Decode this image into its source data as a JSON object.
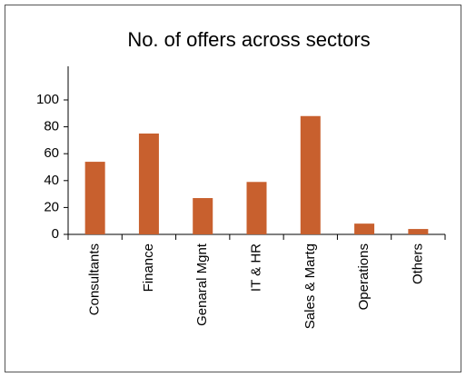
{
  "chart_data": {
    "type": "bar",
    "title": "No. of offers across sectors",
    "categories": [
      "Consultants",
      "Finance",
      "Genaral Mgnt",
      "IT & HR",
      "Sales & Martg",
      "Operations",
      "Others"
    ],
    "values": [
      54,
      75,
      27,
      39,
      88,
      8,
      4
    ],
    "color": "#c8602e",
    "ylim": [
      0,
      125
    ],
    "yticks": [
      0,
      20,
      40,
      60,
      80,
      100
    ],
    "grid": false
  }
}
